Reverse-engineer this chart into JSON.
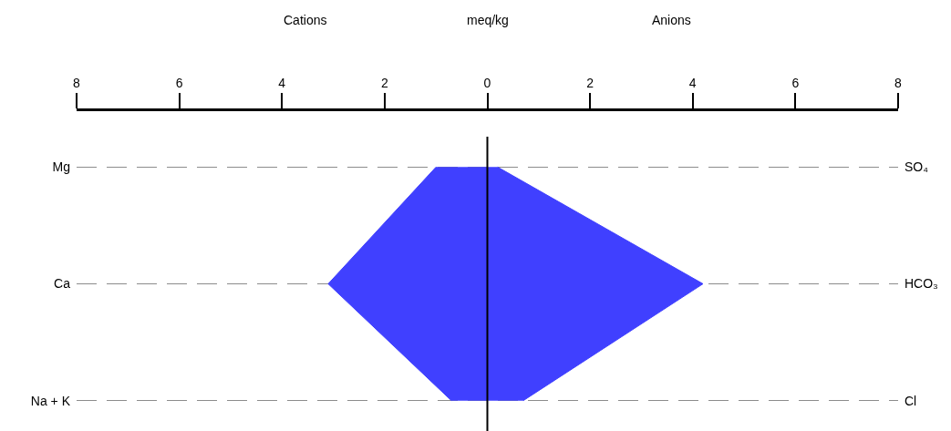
{
  "chart_data": {
    "type": "area",
    "orientation": "horizontal",
    "xlabel": "meq/kg",
    "annotations": [
      "Cations",
      "Anions"
    ],
    "categories": [
      "Mg",
      "Ca",
      "Na + K"
    ],
    "y2_categories": [
      "SO₄",
      "HCO₃",
      "Cl"
    ],
    "series": [
      {
        "color": "#4040ff",
        "values": [
          -1.0,
          -3.1,
          -0.7
        ]
      },
      {
        "color": "#4040ff",
        "values": [
          0.2,
          4.2,
          0.7
        ]
      }
    ],
    "xlim": [
      -8,
      8
    ],
    "xticks": [
      {
        "value": -8,
        "label": "8"
      },
      {
        "value": -6,
        "label": "6"
      },
      {
        "value": -4,
        "label": "4"
      },
      {
        "value": -2,
        "label": "2"
      },
      0,
      2,
      4,
      6,
      8
    ],
    "ref_lines": [
      {
        "axis": "x",
        "value": 0,
        "color": "#000000"
      }
    ],
    "grid": "y"
  }
}
